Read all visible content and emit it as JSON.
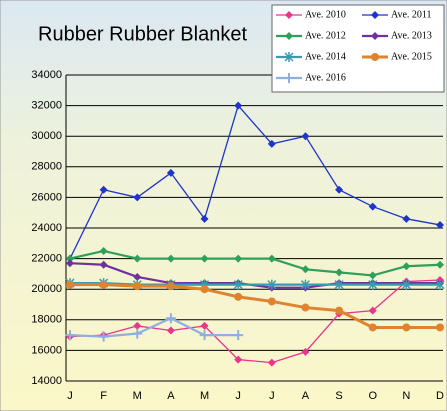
{
  "chart_data": {
    "type": "line",
    "title": "Rubber Rubber Blanket",
    "categories": [
      "J",
      "F",
      "M",
      "A",
      "M",
      "J",
      "J",
      "A",
      "S",
      "O",
      "N",
      "D"
    ],
    "ylim": [
      14000,
      34000
    ],
    "yticks": [
      14000,
      16000,
      18000,
      20000,
      22000,
      24000,
      26000,
      28000,
      30000,
      32000,
      34000
    ],
    "grid": true,
    "legend": "top-right",
    "series": [
      {
        "name": "Ave. 2010",
        "color": "#e8368f",
        "marker": "diamond",
        "values": [
          16900,
          17000,
          17600,
          17300,
          17600,
          15400,
          15200,
          15900,
          18400,
          18600,
          20500,
          20600
        ]
      },
      {
        "name": "Ave. 2011",
        "color": "#1f35c8",
        "marker": "diamond",
        "values": [
          22000,
          26500,
          26000,
          27600,
          24600,
          32000,
          29500,
          30000,
          26500,
          25400,
          24600,
          24200
        ]
      },
      {
        "name": "Ave. 2012",
        "color": "#2ea05a",
        "marker": "diamond",
        "values": [
          22000,
          22500,
          22000,
          22000,
          22000,
          22000,
          22000,
          21300,
          21100,
          20900,
          21500,
          21600
        ]
      },
      {
        "name": "Ave. 2013",
        "color": "#7030a0",
        "marker": "diamond",
        "values": [
          21700,
          21600,
          20800,
          20400,
          20400,
          20400,
          20100,
          20100,
          20400,
          20400,
          20400,
          20400
        ]
      },
      {
        "name": "Ave. 2014",
        "color": "#3a9ab0",
        "marker": "star",
        "values": [
          20400,
          20400,
          20300,
          20300,
          20300,
          20300,
          20300,
          20300,
          20300,
          20300,
          20300,
          20300
        ]
      },
      {
        "name": "Ave. 2015",
        "color": "#e0832e",
        "marker": "circle",
        "values": [
          20300,
          20300,
          20200,
          20200,
          20000,
          19500,
          19200,
          18800,
          18600,
          17500,
          17500,
          17500
        ]
      },
      {
        "name": "Ave. 2016",
        "color": "#8fb0de",
        "marker": "plus",
        "values": [
          17000,
          16900,
          17100,
          18100,
          17000,
          17000,
          null,
          null,
          null,
          null,
          null,
          null
        ]
      }
    ]
  }
}
